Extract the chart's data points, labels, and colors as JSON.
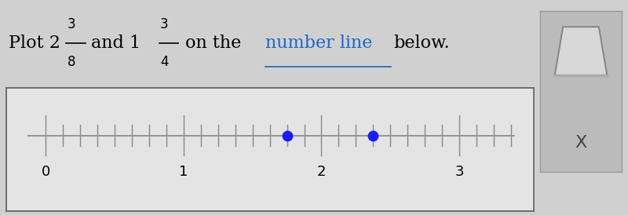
{
  "point1": 1.75,
  "point2": 2.375,
  "point_color": "#1a1aff",
  "point_size": 80,
  "x_min": -0.15,
  "x_max": 3.45,
  "tick_integers": [
    0,
    1,
    2,
    3
  ],
  "num_subdivisions": 8,
  "line_color": "#000000",
  "text_color": "#000000",
  "fig_width": 8.0,
  "fig_height": 2.74,
  "dpi": 100,
  "bg_color": "#d0d0d0",
  "box_bg": "#e4e4e4",
  "number_line_color": "#888888",
  "link_color": "#1a66cc"
}
